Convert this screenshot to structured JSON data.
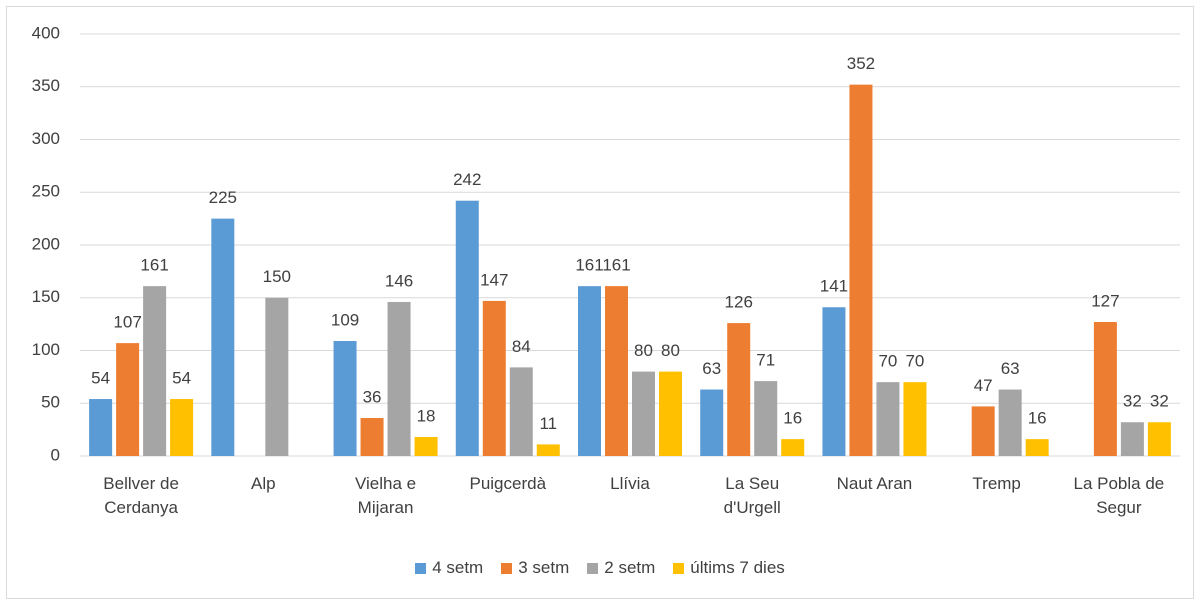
{
  "chart_data": {
    "type": "bar",
    "categories": [
      "Bellver de Cerdanya",
      "Alp",
      "Vielha e Mijaran",
      "Puigcerdà",
      "Llívia",
      "La Seu d'Urgell",
      "Naut Aran",
      "Tremp",
      "La Pobla de Segur"
    ],
    "series": [
      {
        "name": "4 setm",
        "color": "#5b9bd5",
        "values": [
          54,
          225,
          109,
          242,
          161,
          63,
          141,
          null,
          null
        ]
      },
      {
        "name": "3 setm",
        "color": "#ed7d31",
        "values": [
          107,
          null,
          36,
          147,
          161,
          126,
          352,
          47,
          127
        ]
      },
      {
        "name": "2 setm",
        "color": "#a5a5a5",
        "values": [
          161,
          150,
          146,
          84,
          80,
          71,
          70,
          63,
          32
        ]
      },
      {
        "name": "últims 7 dies",
        "color": "#ffc000",
        "values": [
          54,
          null,
          18,
          11,
          80,
          16,
          70,
          16,
          32
        ]
      }
    ],
    "ylim": [
      0,
      400
    ],
    "yticks": [
      0,
      50,
      100,
      150,
      200,
      250,
      300,
      350,
      400
    ],
    "grid": true,
    "legend": "bottom"
  }
}
